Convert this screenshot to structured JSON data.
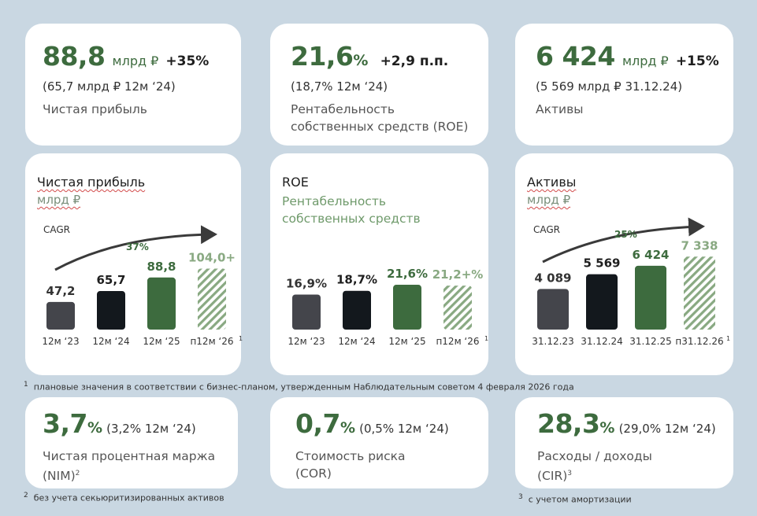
{
  "kpi_top": [
    {
      "value": "88,8",
      "unit": "млрд ₽",
      "delta": "+35%",
      "prev": "(65,7 млрд ₽ 12м ‘24)",
      "label_lines": [
        "Чистая прибыль"
      ]
    },
    {
      "value": "21,6",
      "unit": "%",
      "delta": "+2,9 п.п.",
      "prev": "(18,7% 12м ‘24)",
      "label_lines": [
        "Рентабельность",
        "собственных средств (ROE)"
      ]
    },
    {
      "value": "6 424",
      "unit": "млрд ₽",
      "delta": "+15%",
      "prev": "(5 569 млрд ₽ 31.12.24)",
      "label_lines": [
        "Активы"
      ]
    }
  ],
  "chart_panels": [
    {
      "title": "Чистая прибыль",
      "subtitle": "млрд ₽",
      "cagr_label": "CAGR",
      "cagr_value": "37%"
    },
    {
      "title": "ROE",
      "subtitle_lines": [
        "Рентабельность",
        "собственных средств"
      ]
    },
    {
      "title": "Активы",
      "subtitle": "млрд ₽",
      "cagr_label": "CAGR",
      "cagr_value": "25%"
    }
  ],
  "chart_data": [
    {
      "type": "bar",
      "title": "Чистая прибыль",
      "ylabel": "млрд ₽",
      "categories": [
        "12м ‘23",
        "12м ‘24",
        "12м ‘25",
        "п12м ‘26"
      ],
      "values": [
        47.2,
        65.7,
        88.8,
        104.0
      ],
      "labels": [
        "47,2",
        "65,7",
        "88,8",
        "104,0+"
      ],
      "bar_colors": [
        "#44454b",
        "#13181d",
        "#3d6b3e",
        "hatched-green"
      ],
      "label_colors": [
        "#333333",
        "#1e1e1e",
        "#3d6b3e",
        "#89a982"
      ],
      "footnote_mark": "1",
      "ylim": [
        0,
        110
      ]
    },
    {
      "type": "bar",
      "title": "ROE",
      "categories": [
        "12м ‘23",
        "12м ‘24",
        "12м ‘25",
        "п12м ‘26"
      ],
      "values": [
        16.9,
        18.7,
        21.6,
        21.2
      ],
      "labels": [
        "16,9%",
        "18,7%",
        "21,6%",
        "21,2+%"
      ],
      "bar_colors": [
        "#44454b",
        "#13181d",
        "#3d6b3e",
        "hatched-green"
      ],
      "label_colors": [
        "#333333",
        "#1e1e1e",
        "#3d6b3e",
        "#89a982"
      ],
      "footnote_mark": "1",
      "ylim": [
        0,
        22
      ]
    },
    {
      "type": "bar",
      "title": "Активы",
      "ylabel": "млрд ₽",
      "categories": [
        "31.12.23",
        "31.12.24",
        "31.12.25",
        "п31.12.26"
      ],
      "values": [
        4089,
        5569,
        6424,
        7338
      ],
      "labels": [
        "4 089",
        "5 569",
        "6 424",
        "7 338"
      ],
      "bar_colors": [
        "#44454b",
        "#13181d",
        "#3d6b3e",
        "hatched-green"
      ],
      "label_colors": [
        "#333333",
        "#1e1e1e",
        "#3d6b3e",
        "#89a982"
      ],
      "footnote_mark": "1",
      "ylim": [
        0,
        7600
      ]
    }
  ],
  "footnote_1": "плановые значения в соответствии с бизнес-планом, утвержденным Наблюдательным советом 4 февраля 2026 года",
  "kpi_bottom": [
    {
      "value": "3,7",
      "unit": "%",
      "prev": "(3,2% 12м ‘24)",
      "label_lines": [
        "Чистая процентная маржа",
        "(NIM)"
      ],
      "label_sup": "2"
    },
    {
      "value": "0,7",
      "unit": "%",
      "prev": "(0,5% 12м ‘24)",
      "label_lines": [
        "Стоимость риска",
        "(COR)"
      ]
    },
    {
      "value": "28,3",
      "unit": "%",
      "prev": "(29,0% 12м ‘24)",
      "label_lines": [
        "Расходы / доходы",
        "(CIR)"
      ],
      "label_sup": "3"
    }
  ],
  "footnote_2": "без учета секьюритизированных активов",
  "footnote_3": "с учетом амортизации",
  "footnote_marks": {
    "one": "1",
    "two": "2",
    "three": "3"
  },
  "colors": {
    "background": "#c9d7e2",
    "accent_green": "#3d6b3e",
    "dark": "#13181d",
    "gray_bar": "#44454b",
    "hatch_green": "#89a982"
  }
}
